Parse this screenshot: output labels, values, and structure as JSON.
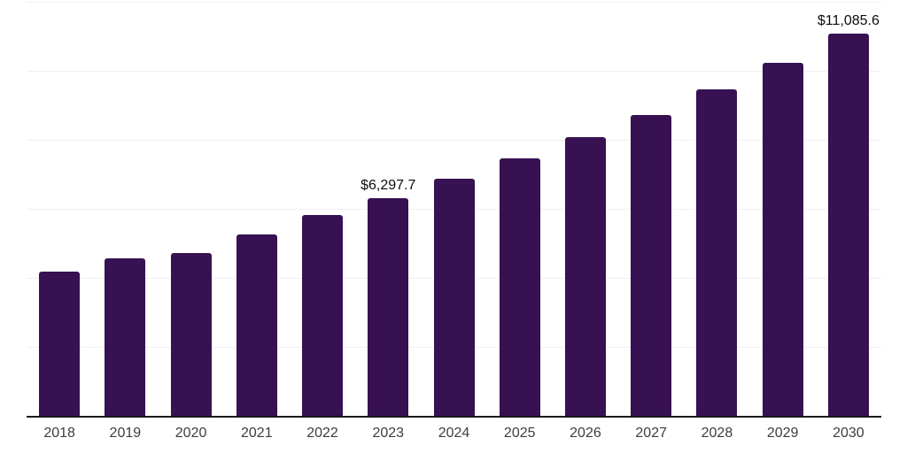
{
  "chart_data": {
    "type": "bar",
    "title": "",
    "xlabel": "",
    "ylabel": "",
    "categories": [
      "2018",
      "2019",
      "2020",
      "2021",
      "2022",
      "2023",
      "2024",
      "2025",
      "2026",
      "2027",
      "2028",
      "2029",
      "2030"
    ],
    "values": [
      4170,
      4570,
      4730,
      5260,
      5830,
      6297.7,
      6860,
      7460,
      8070,
      8730,
      9450,
      10230,
      11085.6
    ],
    "data_labels": [
      "",
      "",
      "",
      "",
      "",
      "$6,297.7",
      "",
      "",
      "",
      "",
      "",
      "",
      "$11,085.6"
    ],
    "ylim": [
      0,
      12000
    ],
    "grid_step": 2000,
    "grid": true,
    "y_axis_labels_visible": false,
    "legend_position": "none",
    "colors": {
      "bar": "#371151",
      "axis_line": "#1a1a1a",
      "gridline": "#f0f0f2",
      "tick_label": "#3d3d3d",
      "value_label": "#0d0d0d",
      "background": "#ffffff"
    }
  }
}
